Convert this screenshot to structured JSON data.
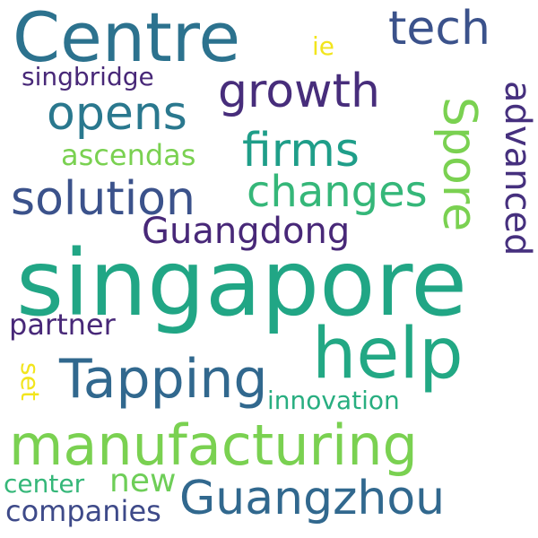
{
  "words": [
    {
      "text": "Centre",
      "color": "#2c728e"
    },
    {
      "text": "tech",
      "color": "#3b528b"
    },
    {
      "text": "ie",
      "color": "#f2e51d"
    },
    {
      "text": "singbridge",
      "color": "#482878"
    },
    {
      "text": "growth",
      "color": "#472d7b"
    },
    {
      "text": "opens",
      "color": "#2a788e"
    },
    {
      "text": "advanced",
      "color": "#46307e"
    },
    {
      "text": "Spore",
      "color": "#7ad151"
    },
    {
      "text": "firms",
      "color": "#1f9e89"
    },
    {
      "text": "ascendas",
      "color": "#7ad151"
    },
    {
      "text": "changes",
      "color": "#35b779"
    },
    {
      "text": "solution",
      "color": "#3b528b"
    },
    {
      "text": "Guangdong",
      "color": "#482878"
    },
    {
      "text": "singapore",
      "color": "#21a685"
    },
    {
      "text": "partner",
      "color": "#482878"
    },
    {
      "text": "help",
      "color": "#22a884"
    },
    {
      "text": "Tapping",
      "color": "#31688e"
    },
    {
      "text": "set",
      "color": "#f2e51d"
    },
    {
      "text": "innovation",
      "color": "#28ae80"
    },
    {
      "text": "manufacturing",
      "color": "#7ad151"
    },
    {
      "text": "new",
      "color": "#6ece58"
    },
    {
      "text": "center",
      "color": "#35b779"
    },
    {
      "text": "Guangzhou",
      "color": "#31688e"
    },
    {
      "text": "companies",
      "color": "#3e4a89"
    }
  ]
}
